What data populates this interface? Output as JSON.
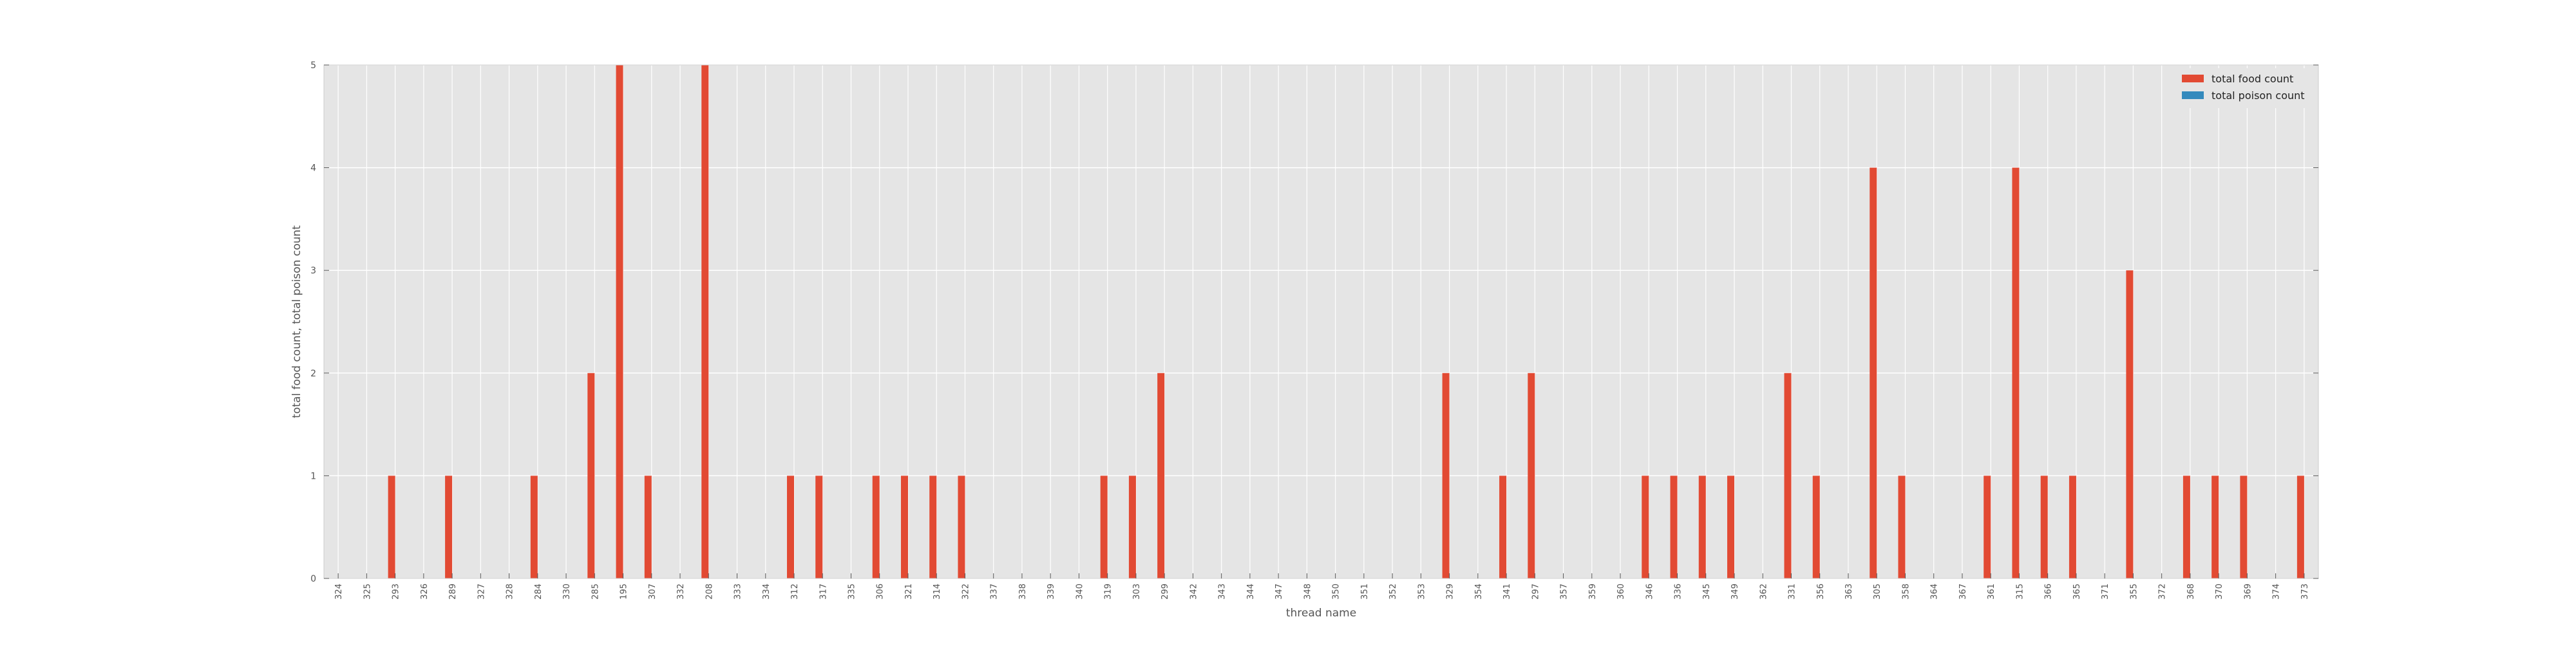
{
  "chart_data": {
    "type": "bar",
    "xlabel": "thread name",
    "ylabel": "total food count, total poison count",
    "ylim": [
      0,
      5
    ],
    "yticks": [
      "0",
      "1",
      "2",
      "3",
      "4",
      "5"
    ],
    "grid": true,
    "legend_position": "top-right",
    "categories": [
      "324",
      "325",
      "293",
      "326",
      "289",
      "327",
      "328",
      "284",
      "330",
      "285",
      "195",
      "307",
      "332",
      "208",
      "333",
      "334",
      "312",
      "317",
      "335",
      "306",
      "321",
      "314",
      "322",
      "337",
      "338",
      "339",
      "340",
      "319",
      "303",
      "299",
      "342",
      "343",
      "344",
      "347",
      "348",
      "350",
      "351",
      "352",
      "353",
      "329",
      "354",
      "341",
      "297",
      "357",
      "359",
      "360",
      "346",
      "336",
      "345",
      "349",
      "362",
      "331",
      "356",
      "363",
      "305",
      "358",
      "364",
      "367",
      "361",
      "315",
      "366",
      "365",
      "371",
      "355",
      "372",
      "368",
      "370",
      "369",
      "374",
      "373"
    ],
    "series": [
      {
        "name": "total food count",
        "color": "#e24a33",
        "values": [
          0,
          0,
          1,
          0,
          1,
          0,
          0,
          1,
          0,
          2,
          5,
          1,
          0,
          5,
          0,
          0,
          1,
          1,
          0,
          1,
          1,
          1,
          1,
          0,
          0,
          0,
          0,
          1,
          1,
          2,
          0,
          0,
          0,
          0,
          0,
          0,
          0,
          0,
          0,
          2,
          0,
          1,
          2,
          0,
          0,
          0,
          1,
          1,
          1,
          1,
          0,
          2,
          1,
          0,
          4,
          1,
          0,
          0,
          1,
          4,
          1,
          1,
          0,
          3,
          0,
          1,
          1,
          1,
          0,
          1
        ]
      },
      {
        "name": "total poison count",
        "color": "#348abd",
        "values": [
          0,
          0,
          0,
          0,
          0,
          0,
          0,
          0,
          0,
          0,
          0,
          0,
          0,
          0,
          0,
          0,
          0,
          0,
          0,
          0,
          0,
          0,
          0,
          0,
          0,
          0,
          0,
          0,
          0,
          0,
          0,
          0,
          0,
          0,
          0,
          0,
          0,
          0,
          0,
          0,
          0,
          0,
          0,
          0,
          0,
          0,
          0,
          0,
          0,
          0,
          0,
          0,
          0,
          0,
          0,
          0,
          0,
          0,
          0,
          0,
          0,
          0,
          0,
          0,
          0,
          0,
          0,
          0,
          0,
          0
        ]
      }
    ]
  },
  "colors": {
    "plot_background": "#e5e5e5",
    "grid": "#ffffff",
    "tick_text": "#555555"
  }
}
